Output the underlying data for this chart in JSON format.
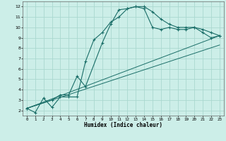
{
  "title": "",
  "xlabel": "Humidex (Indice chaleur)",
  "background_color": "#cceee8",
  "grid_color": "#aad8d0",
  "line_color": "#1a6e68",
  "xlim": [
    -0.5,
    23.5
  ],
  "ylim": [
    1.5,
    12.5
  ],
  "yticks": [
    2,
    3,
    4,
    5,
    6,
    7,
    8,
    9,
    10,
    11,
    12
  ],
  "xticks": [
    0,
    1,
    2,
    3,
    4,
    5,
    6,
    7,
    8,
    9,
    10,
    11,
    12,
    13,
    14,
    15,
    16,
    17,
    18,
    19,
    20,
    21,
    22,
    23
  ],
  "line1_x": [
    0,
    1,
    2,
    3,
    4,
    5,
    6,
    7,
    8,
    9,
    10,
    11,
    12,
    13,
    14,
    15,
    16,
    17,
    18,
    19,
    20,
    21,
    22,
    23
  ],
  "line1_y": [
    2.2,
    1.8,
    3.2,
    2.3,
    3.3,
    3.3,
    3.3,
    6.7,
    8.8,
    9.5,
    10.5,
    11.0,
    11.8,
    12.0,
    12.0,
    11.5,
    10.8,
    10.3,
    10.0,
    10.0,
    10.0,
    9.8,
    9.5,
    9.2
  ],
  "line2_x": [
    0,
    3,
    4,
    5,
    6,
    7,
    9,
    10,
    11,
    12,
    13,
    14,
    15,
    16,
    17,
    18,
    19,
    20,
    21,
    22,
    23
  ],
  "line2_y": [
    2.2,
    3.0,
    3.5,
    3.5,
    5.3,
    4.3,
    8.5,
    10.3,
    11.7,
    11.8,
    12.0,
    11.8,
    10.0,
    9.8,
    10.0,
    9.8,
    9.8,
    10.0,
    9.5,
    9.0,
    9.2
  ],
  "line3_x": [
    0,
    23
  ],
  "line3_y": [
    2.2,
    9.2
  ],
  "line4_x": [
    0,
    23
  ],
  "line4_y": [
    2.2,
    8.3
  ]
}
